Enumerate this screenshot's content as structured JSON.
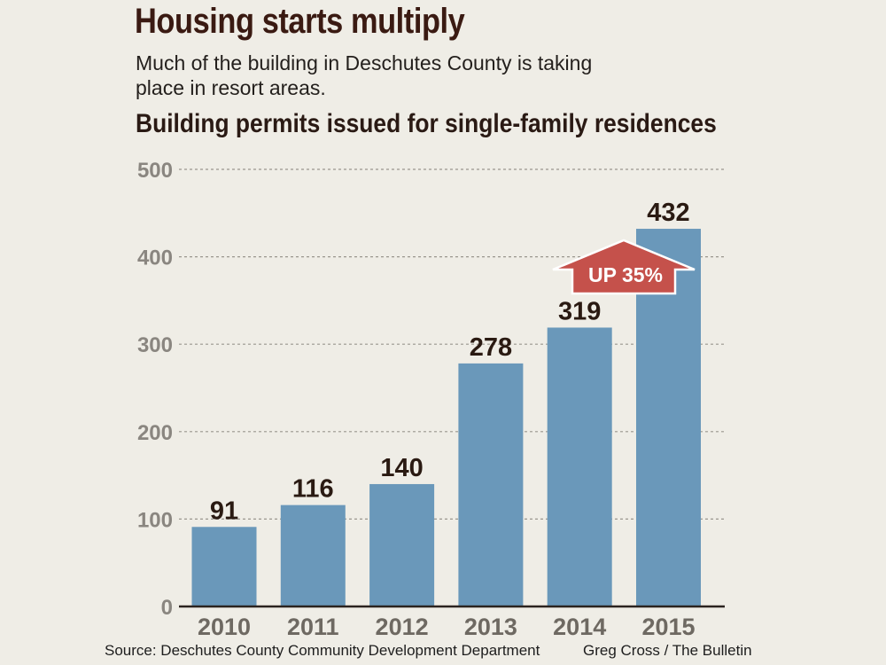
{
  "header": {
    "title": "Housing starts multiply",
    "subtitle": "Much of the building in Deschutes County is taking place in resort areas."
  },
  "chart_data": {
    "type": "bar",
    "title": "Building permits issued for single-family residences",
    "categories": [
      "2010",
      "2011",
      "2012",
      "2013",
      "2014",
      "2015"
    ],
    "values": [
      91,
      116,
      140,
      278,
      319,
      432
    ],
    "ylim": [
      0,
      500
    ],
    "yticks": [
      0,
      100,
      200,
      300,
      400,
      500
    ],
    "grid": true,
    "annotation": "UP 35%",
    "colors": {
      "bar": "#6a98ba",
      "callout": "#c5514b",
      "grid": "#9a968e",
      "axis": "#2b2420"
    }
  },
  "footer": {
    "source": "Source: Deschutes County Community Development Department",
    "credit": "Greg Cross / The Bulletin"
  }
}
